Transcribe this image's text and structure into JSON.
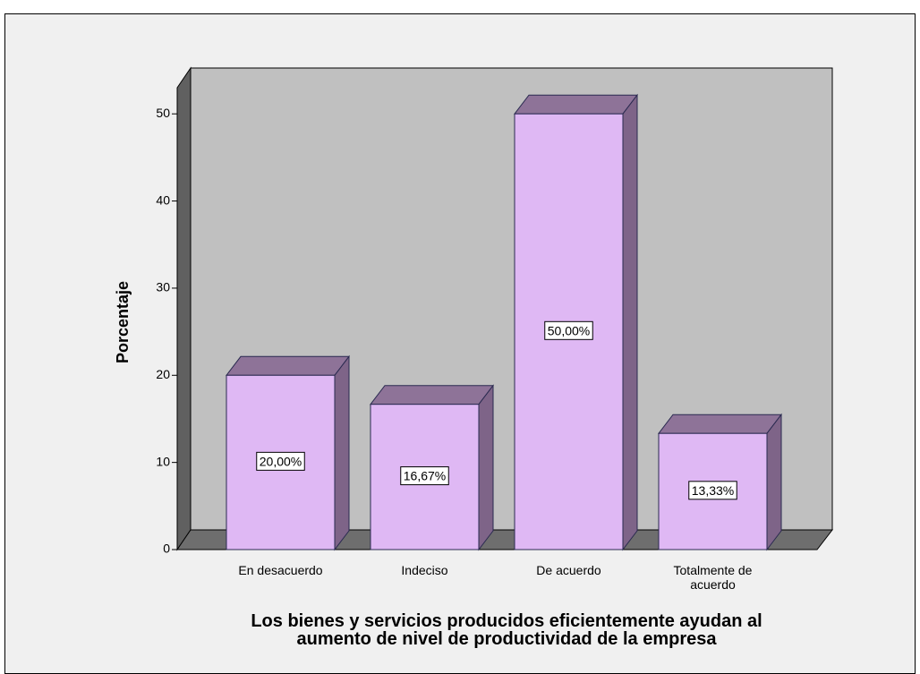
{
  "chart_data": {
    "type": "bar3d",
    "xlabel": "Los bienes y servicios producidos eficientemente ayudan al aumento de nivel de productividad de la empresa",
    "ylabel": "Porcentaje",
    "categories": [
      "En desacuerdo",
      "Indeciso",
      "De acuerdo",
      "Totalmente de acuerdo"
    ],
    "values": [
      20,
      16.67,
      50,
      13.33
    ],
    "value_labels": [
      "20,00%",
      "16,67%",
      "50,00%",
      "13,33%"
    ],
    "color": "#dfb8f4",
    "ylim": [
      0,
      53
    ],
    "yticks": [
      0,
      10,
      20,
      30,
      40,
      50
    ],
    "grid": false
  }
}
